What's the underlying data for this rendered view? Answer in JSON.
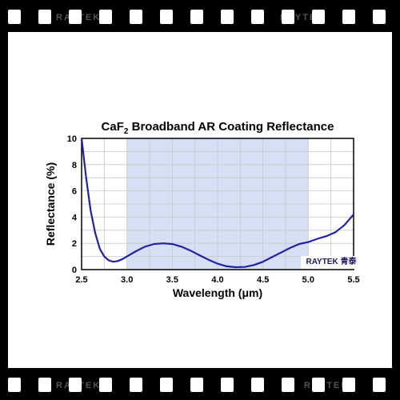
{
  "film": {
    "brand_top": "RAYTEK",
    "brand_bottom": "RAYTEK"
  },
  "chart_data": {
    "type": "line",
    "title": "CaF2 Broadband AR Coating Reflectance",
    "xlabel": "Wavelength (μm)",
    "ylabel": "Reflectance (%)",
    "xlim": [
      2.5,
      5.5
    ],
    "ylim": [
      0,
      10
    ],
    "xticks": [
      "2.5",
      "3.0",
      "3.5",
      "4.0",
      "4.5",
      "5.0",
      "5.5"
    ],
    "yticks": [
      "0",
      "2",
      "4",
      "6",
      "8",
      "10"
    ],
    "grid": true,
    "highlight_band": [
      3.0,
      5.0
    ],
    "highlight_color": "#d6e0f5",
    "line_color": "#2020aa",
    "series": [
      {
        "x": [
          2.5,
          2.55,
          2.6,
          2.65,
          2.7,
          2.75,
          2.8,
          2.85,
          2.9,
          2.95,
          3.0,
          3.1,
          3.2,
          3.3,
          3.4,
          3.5,
          3.6,
          3.7,
          3.8,
          3.9,
          4.0,
          4.1,
          4.2,
          4.3,
          4.4,
          4.5,
          4.6,
          4.7,
          4.8,
          4.9,
          5.0,
          5.1,
          5.2,
          5.3,
          5.4,
          5.5
        ],
        "y": [
          10.0,
          7.0,
          4.5,
          2.8,
          1.6,
          1.0,
          0.7,
          0.6,
          0.65,
          0.8,
          1.0,
          1.4,
          1.75,
          1.95,
          2.0,
          1.95,
          1.75,
          1.45,
          1.1,
          0.75,
          0.45,
          0.25,
          0.18,
          0.2,
          0.35,
          0.6,
          0.95,
          1.3,
          1.65,
          1.95,
          2.1,
          2.35,
          2.55,
          2.85,
          3.4,
          4.2
        ]
      }
    ]
  },
  "watermark": {
    "brand": "RAYTEK",
    "cjk": "青泰"
  }
}
